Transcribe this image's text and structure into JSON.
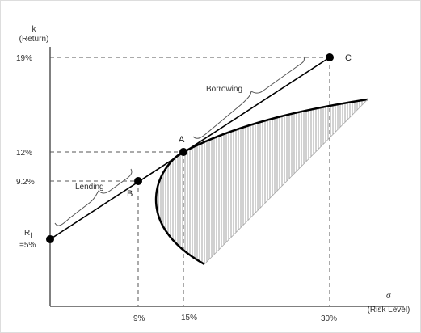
{
  "y_axis": {
    "symbol": "k",
    "label": "(Return)"
  },
  "x_axis": {
    "symbol": "σ",
    "label": "(Risk Level)"
  },
  "y_ticks": [
    "19%",
    "12%",
    "9.2%"
  ],
  "x_ticks": [
    "9%",
    "15%",
    "30%"
  ],
  "rf_label": {
    "symbol": "R",
    "subscript": "f",
    "value": "=5%"
  },
  "points": [
    {
      "name": "A",
      "risk": 15,
      "return": 12
    },
    {
      "name": "B",
      "risk": 9,
      "return": 9.2
    },
    {
      "name": "C",
      "risk": 30,
      "return": 19
    }
  ],
  "annotations": {
    "lending": "Lending",
    "borrowing": "Borrowing"
  },
  "colors": {
    "line": "#000000",
    "dashed": "#555555",
    "axis": "#000000"
  }
}
